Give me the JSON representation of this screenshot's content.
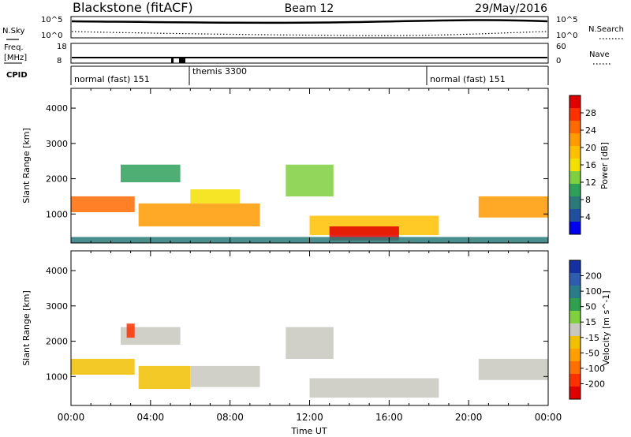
{
  "header": {
    "title_left": "Blackstone (fitACF)",
    "title_center": "Beam 12",
    "title_right": "29/May/2016"
  },
  "top_panels": {
    "nsky_label": "N.Sky",
    "nsky_ticks": [
      "10^5",
      "10^0"
    ],
    "nsearch_label": "N.Search",
    "freq_label": "Freq.",
    "freq_unit": "[MHz]",
    "freq_ticks": [
      "18",
      "8"
    ],
    "nave_label": "Nave",
    "nave_ticks": [
      "60",
      "0"
    ],
    "cpid_label": "CPID",
    "cpid_segments": [
      {
        "label": "normal (fast) 151",
        "start_hour": 0,
        "end_hour": 5.9
      },
      {
        "label": "themis 3300",
        "start_hour": 5.9,
        "end_hour": 18.0
      },
      {
        "label": "normal (fast) 151",
        "start_hour": 18.0,
        "end_hour": 24
      }
    ]
  },
  "power_colorbar": {
    "label": "Power [dB]",
    "ticks": [
      "28",
      "24",
      "20",
      "16",
      "12",
      "8",
      "4"
    ],
    "colors": [
      "#e00000",
      "#ff3000",
      "#ff6a00",
      "#ff9a00",
      "#ffc000",
      "#f4e000",
      "#7fd040",
      "#2fa05a",
      "#2a7a7a",
      "#204f9e",
      "#0000ee"
    ]
  },
  "velocity_colorbar": {
    "label": "Velocity [m s^-1]",
    "ticks": [
      "200",
      "100",
      "50",
      "15",
      "-15",
      "-50",
      "-100",
      "-200"
    ],
    "colors": [
      "#1530a0",
      "#2e5db0",
      "#2a7c8a",
      "#30a050",
      "#80d040",
      "#c8c8c0",
      "#f0c000",
      "#ffa000",
      "#ff7000",
      "#ff3000",
      "#e00000"
    ]
  },
  "chart_data": {
    "type": "heatmap",
    "x_axis": {
      "label": "Time UT",
      "range_hours": [
        0,
        24
      ],
      "tick_labels": [
        "00:00",
        "04:00",
        "08:00",
        "12:00",
        "16:00",
        "20:00",
        "00:00"
      ],
      "tick_hours": [
        0,
        4,
        8,
        12,
        16,
        20,
        24
      ]
    },
    "y_axis": {
      "label": "Slant Range [km]",
      "range": [
        180,
        4560
      ],
      "tick_values": [
        1000,
        2000,
        3000,
        4000
      ],
      "tick_labels": [
        "1000",
        "2000",
        "3000",
        "4000"
      ]
    },
    "power_panel": {
      "quantity": "Power [dB]",
      "scale": [
        0,
        30
      ],
      "echo_regions": [
        {
          "t_start": 0.0,
          "t_end": 3.2,
          "r_start": 1050,
          "r_end": 1500,
          "power": 22
        },
        {
          "t_start": 2.5,
          "t_end": 5.5,
          "r_start": 1900,
          "r_end": 2400,
          "power": 10
        },
        {
          "t_start": 3.4,
          "t_end": 9.5,
          "r_start": 650,
          "r_end": 1300,
          "power": 21
        },
        {
          "t_start": 6.0,
          "t_end": 8.5,
          "r_start": 1300,
          "r_end": 1700,
          "power": 14
        },
        {
          "t_start": 10.8,
          "t_end": 13.2,
          "r_start": 1500,
          "r_end": 2400,
          "power": 12
        },
        {
          "t_start": 12.0,
          "t_end": 18.5,
          "r_start": 400,
          "r_end": 950,
          "power": 18
        },
        {
          "t_start": 13.0,
          "t_end": 16.5,
          "r_start": 250,
          "r_end": 650,
          "power": 29
        },
        {
          "t_start": 20.5,
          "t_end": 24.0,
          "r_start": 900,
          "r_end": 1500,
          "power": 21
        },
        {
          "t_start": 0.0,
          "t_end": 24.0,
          "r_start": 190,
          "r_end": 350,
          "power": 8
        }
      ]
    },
    "velocity_panel": {
      "quantity": "Velocity [m s^-1]",
      "scale": [
        -250,
        250
      ],
      "echo_regions": [
        {
          "t_start": 0.0,
          "t_end": 3.2,
          "r_start": 1050,
          "r_end": 1500,
          "velocity": -40
        },
        {
          "t_start": 3.4,
          "t_end": 6.0,
          "r_start": 650,
          "r_end": 1300,
          "velocity": -60
        },
        {
          "t_start": 6.0,
          "t_end": 9.5,
          "r_start": 700,
          "r_end": 1300,
          "velocity": 0
        },
        {
          "t_start": 2.5,
          "t_end": 5.5,
          "r_start": 1900,
          "r_end": 2400,
          "velocity": 0
        },
        {
          "t_start": 10.8,
          "t_end": 13.2,
          "r_start": 1500,
          "r_end": 2400,
          "velocity": 0
        },
        {
          "t_start": 12.0,
          "t_end": 18.5,
          "r_start": 400,
          "r_end": 950,
          "velocity": 0
        },
        {
          "t_start": 20.5,
          "t_end": 24.0,
          "r_start": 900,
          "r_end": 1500,
          "velocity": 0
        },
        {
          "t_start": 2.8,
          "t_end": 3.2,
          "r_start": 2100,
          "r_end": 2500,
          "velocity": -200
        }
      ]
    }
  }
}
